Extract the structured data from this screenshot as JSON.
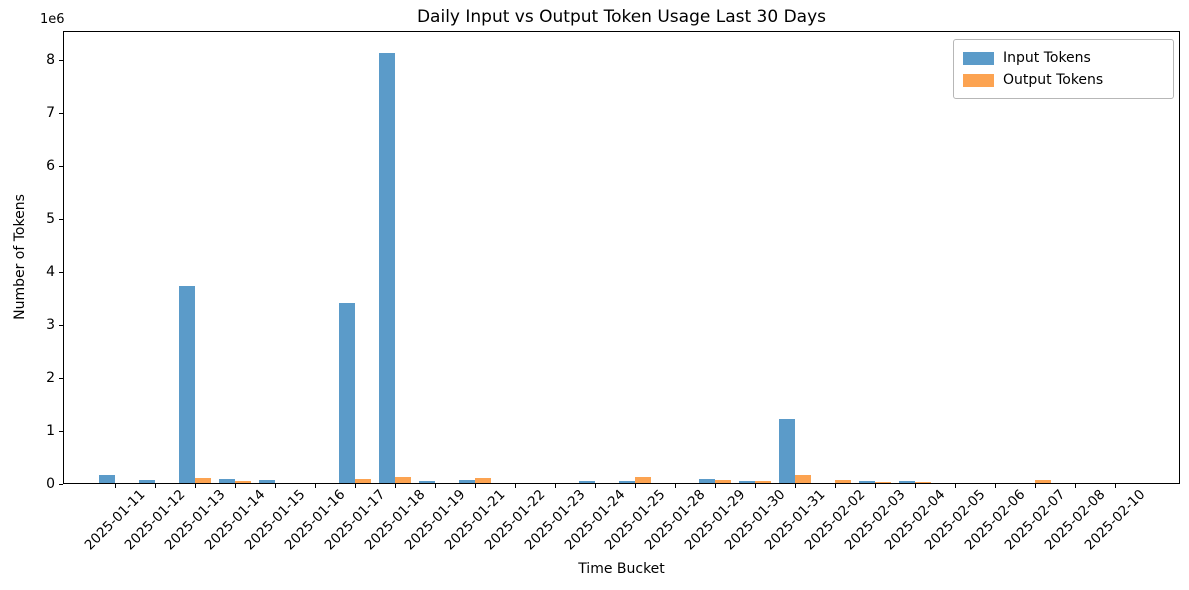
{
  "chart_data": {
    "type": "bar",
    "title": "Daily Input vs Output Token Usage Last 30 Days",
    "xlabel": "Time Bucket",
    "ylabel": "Number of Tokens",
    "y_offset_label": "1e6",
    "grid": false,
    "legend_position": "upper right",
    "ylim": [
      0,
      8550000
    ],
    "yticks": [
      0,
      1,
      2,
      3,
      4,
      5,
      6,
      7,
      8
    ],
    "categories": [
      "2025-01-11",
      "2025-01-12",
      "2025-01-13",
      "2025-01-14",
      "2025-01-15",
      "2025-01-16",
      "2025-01-17",
      "2025-01-18",
      "2025-01-19",
      "2025-01-21",
      "2025-01-22",
      "2025-01-23",
      "2025-01-24",
      "2025-01-25",
      "2025-01-28",
      "2025-01-29",
      "2025-01-30",
      "2025-01-31",
      "2025-02-02",
      "2025-02-03",
      "2025-02-04",
      "2025-02-05",
      "2025-02-06",
      "2025-02-07",
      "2025-02-08",
      "2025-02-10"
    ],
    "series": [
      {
        "name": "Input Tokens",
        "color": "#5B9BC9",
        "values": [
          150000,
          60000,
          3720000,
          70000,
          55000,
          0,
          3400000,
          8120000,
          40000,
          50000,
          0,
          0,
          40000,
          40000,
          0,
          80000,
          35000,
          1200000,
          0,
          40000,
          40000,
          0,
          0,
          0,
          0,
          0
        ]
      },
      {
        "name": "Output Tokens",
        "color": "#FCA351",
        "values": [
          0,
          0,
          100000,
          45000,
          0,
          0,
          80000,
          120000,
          0,
          90000,
          0,
          0,
          0,
          110000,
          0,
          50000,
          30000,
          150000,
          50000,
          25000,
          25000,
          0,
          0,
          50000,
          0,
          0
        ]
      }
    ]
  }
}
